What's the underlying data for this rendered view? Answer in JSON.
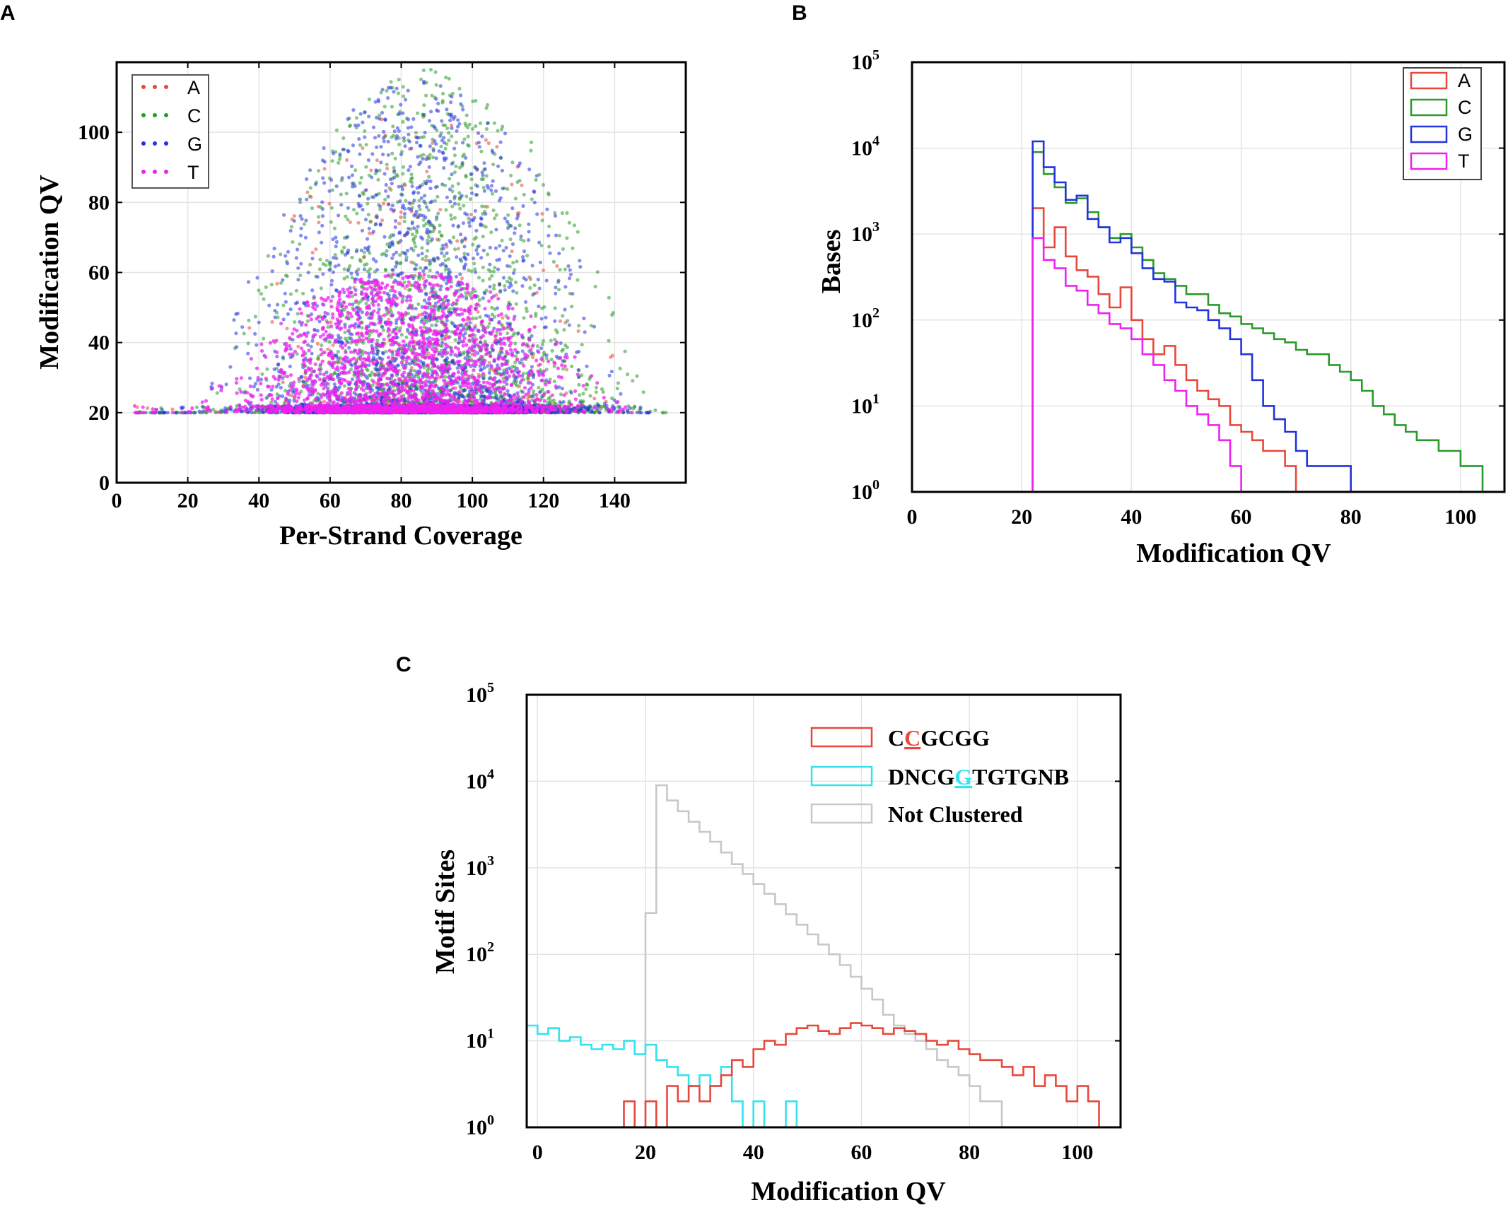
{
  "colors": {
    "A": "#e8483b",
    "C": "#2a9a2a",
    "G": "#2233dd",
    "T": "#ee22ee",
    "red": "#e8483b",
    "cyan": "#33e3ee",
    "gray": "#c8c8c8"
  },
  "chart_data": [
    {
      "panel": "A",
      "type": "scatter",
      "xlabel": "Per-Strand Coverage",
      "ylabel": "Modification QV",
      "xlim": [
        0,
        160
      ],
      "ylim": [
        0,
        120
      ],
      "xticks": [
        "0",
        "20",
        "40",
        "60",
        "80",
        "100",
        "120",
        "140"
      ],
      "yticks": [
        "0",
        "20",
        "40",
        "60",
        "80",
        "100"
      ],
      "legend": {
        "entries": [
          "A",
          "C",
          "G",
          "T"
        ],
        "placement": "top-left"
      },
      "series": [
        {
          "name": "A",
          "color": "#e8483b",
          "approx_distribution": {
            "x_center": 85,
            "x_range": [
              5,
              150
            ],
            "y_min": 20,
            "y_max": 108
          }
        },
        {
          "name": "C",
          "color": "#2a9a2a",
          "approx_distribution": {
            "x_center": 88,
            "x_range": [
              5,
              155
            ],
            "y_min": 20,
            "y_max": 118
          }
        },
        {
          "name": "G",
          "color": "#2233dd",
          "approx_distribution": {
            "x_center": 85,
            "x_range": [
              5,
              150
            ],
            "y_min": 20,
            "y_max": 115
          }
        },
        {
          "name": "T",
          "color": "#ee22ee",
          "approx_distribution": {
            "x_center": 82,
            "x_range": [
              5,
              145
            ],
            "y_min": 20,
            "y_max": 60
          }
        }
      ]
    },
    {
      "panel": "B",
      "type": "line",
      "subtype": "step-histogram",
      "xlabel": "Modification QV",
      "ylabel": "Bases",
      "yscale": "log",
      "xlim": [
        0,
        108
      ],
      "ylim": [
        1,
        100000
      ],
      "xticks": [
        "0",
        "20",
        "40",
        "60",
        "80",
        "100"
      ],
      "yticks": [
        "10^0",
        "10^1",
        "10^2",
        "10^3",
        "10^4",
        "10^5"
      ],
      "legend": {
        "entries": [
          "A",
          "C",
          "G",
          "T"
        ],
        "placement": "top-right"
      },
      "series": [
        {
          "name": "A",
          "color": "#e8483b",
          "x": [
            22,
            24,
            26,
            28,
            30,
            32,
            34,
            36,
            38,
            40,
            42,
            44,
            46,
            48,
            50,
            52,
            54,
            56,
            58,
            60,
            62,
            64,
            66,
            68,
            70,
            72,
            74,
            76,
            78
          ],
          "values": [
            2000,
            700,
            1200,
            550,
            380,
            320,
            200,
            140,
            240,
            100,
            60,
            40,
            50,
            30,
            20,
            15,
            12,
            10,
            6,
            5,
            4,
            3,
            3,
            2,
            1,
            1,
            1,
            1,
            1
          ]
        },
        {
          "name": "C",
          "color": "#2a9a2a",
          "x": [
            22,
            24,
            26,
            28,
            30,
            32,
            34,
            36,
            38,
            40,
            42,
            44,
            46,
            48,
            50,
            52,
            54,
            56,
            58,
            60,
            62,
            64,
            66,
            68,
            70,
            72,
            74,
            76,
            78,
            80,
            82,
            84,
            86,
            88,
            90,
            92,
            94,
            96,
            98,
            100,
            102
          ],
          "values": [
            9000,
            5000,
            3500,
            2300,
            2600,
            1800,
            1200,
            900,
            1000,
            700,
            500,
            350,
            300,
            250,
            200,
            200,
            150,
            120,
            110,
            90,
            80,
            70,
            60,
            55,
            45,
            40,
            40,
            30,
            25,
            20,
            15,
            10,
            8,
            6,
            5,
            4,
            4,
            3,
            3,
            2,
            2
          ]
        },
        {
          "name": "G",
          "color": "#2233dd",
          "x": [
            22,
            24,
            26,
            28,
            30,
            32,
            34,
            36,
            38,
            40,
            42,
            44,
            46,
            48,
            50,
            52,
            54,
            56,
            58,
            60,
            62,
            64,
            66,
            68,
            70,
            72,
            74,
            76,
            78,
            80,
            82,
            84
          ],
          "values": [
            12000,
            6000,
            4000,
            2500,
            2800,
            1500,
            1200,
            800,
            900,
            600,
            400,
            300,
            280,
            160,
            140,
            130,
            100,
            80,
            60,
            40,
            20,
            10,
            7,
            5,
            3,
            2,
            2,
            2,
            2,
            1,
            1,
            1
          ]
        },
        {
          "name": "T",
          "color": "#ee22ee",
          "x": [
            22,
            24,
            26,
            28,
            30,
            32,
            34,
            36,
            38,
            40,
            42,
            44,
            46,
            48,
            50,
            52,
            54,
            56,
            58,
            60
          ],
          "values": [
            900,
            500,
            400,
            250,
            220,
            150,
            120,
            90,
            80,
            60,
            40,
            30,
            20,
            15,
            10,
            8,
            6,
            4,
            2,
            1
          ]
        }
      ]
    },
    {
      "panel": "C",
      "type": "line",
      "subtype": "step-histogram",
      "xlabel": "Modification QV",
      "ylabel": "Motif Sites",
      "yscale": "log",
      "xlim": [
        -2,
        108
      ],
      "ylim": [
        1,
        100000
      ],
      "xticks": [
        "0",
        "20",
        "40",
        "60",
        "80",
        "100"
      ],
      "yticks": [
        "10^0",
        "10^1",
        "10^2",
        "10^3",
        "10^4",
        "10^5"
      ],
      "legend": {
        "placement": "top-right"
      },
      "series": [
        {
          "name": "CCGCGG",
          "name_parts": [
            "C",
            "C",
            "GCGG"
          ],
          "color": "#e8483b",
          "x": [
            16,
            18,
            20,
            22,
            24,
            26,
            28,
            30,
            32,
            34,
            36,
            38,
            40,
            42,
            44,
            46,
            48,
            50,
            52,
            54,
            56,
            58,
            60,
            62,
            64,
            66,
            68,
            70,
            72,
            74,
            76,
            78,
            80,
            82,
            84,
            86,
            88,
            90,
            92,
            94,
            96,
            98,
            100,
            102
          ],
          "values": [
            2,
            1,
            2,
            1,
            3,
            2,
            3,
            2,
            3,
            4,
            6,
            5,
            8,
            10,
            9,
            12,
            14,
            15,
            13,
            12,
            14,
            16,
            15,
            14,
            12,
            14,
            13,
            12,
            10,
            9,
            10,
            8,
            7,
            6,
            6,
            5,
            4,
            5,
            3,
            4,
            3,
            2,
            3,
            2
          ]
        },
        {
          "name": "DNCGGTGTGNB",
          "name_parts": [
            "DNCG",
            "G",
            "TGTGNB"
          ],
          "color": "#33e3ee",
          "x": [
            -2,
            0,
            2,
            4,
            6,
            8,
            10,
            12,
            14,
            16,
            18,
            20,
            22,
            24,
            26,
            28,
            30,
            32,
            34,
            36,
            38,
            40,
            42,
            44,
            46,
            48,
            50,
            52
          ],
          "values": [
            15,
            12,
            14,
            10,
            11,
            9,
            8,
            9,
            8,
            10,
            7,
            9,
            6,
            5,
            4,
            3,
            4,
            3,
            5,
            2,
            1,
            2,
            1,
            1,
            2,
            1,
            1,
            1
          ]
        },
        {
          "name": "Not Clustered",
          "color": "#c8c8c8",
          "x": [
            20,
            22,
            24,
            26,
            28,
            30,
            32,
            34,
            36,
            38,
            40,
            42,
            44,
            46,
            48,
            50,
            52,
            54,
            56,
            58,
            60,
            62,
            64,
            66,
            68,
            70,
            72,
            74,
            76,
            78,
            80,
            82,
            84,
            86,
            88,
            90,
            92,
            94,
            96,
            98,
            100,
            102,
            104
          ],
          "values": [
            300,
            9000,
            6000,
            4500,
            3400,
            2600,
            2000,
            1500,
            1100,
            850,
            650,
            500,
            380,
            290,
            220,
            170,
            130,
            100,
            75,
            55,
            40,
            30,
            20,
            15,
            12,
            10,
            8,
            6,
            5,
            4,
            3,
            2,
            2,
            1,
            1,
            1,
            1,
            1,
            1,
            1,
            1,
            1,
            1
          ]
        }
      ]
    }
  ]
}
